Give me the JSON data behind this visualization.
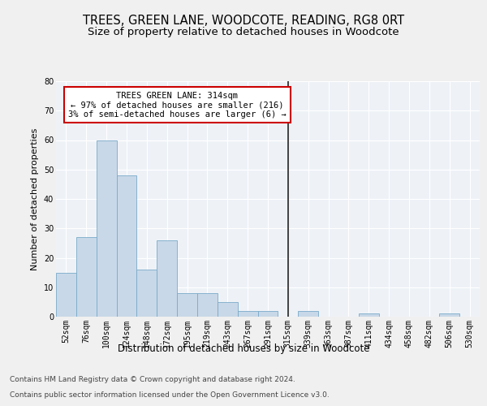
{
  "title": "TREES, GREEN LANE, WOODCOTE, READING, RG8 0RT",
  "subtitle": "Size of property relative to detached houses in Woodcote",
  "xlabel": "Distribution of detached houses by size in Woodcote",
  "ylabel": "Number of detached properties",
  "categories": [
    "52sqm",
    "76sqm",
    "100sqm",
    "124sqm",
    "148sqm",
    "172sqm",
    "195sqm",
    "219sqm",
    "243sqm",
    "267sqm",
    "291sqm",
    "315sqm",
    "339sqm",
    "363sqm",
    "387sqm",
    "411sqm",
    "434sqm",
    "458sqm",
    "482sqm",
    "506sqm",
    "530sqm"
  ],
  "values": [
    15,
    27,
    60,
    48,
    16,
    26,
    8,
    8,
    5,
    2,
    2,
    0,
    2,
    0,
    0,
    1,
    0,
    0,
    0,
    1,
    0
  ],
  "bar_color": "#c8d8e8",
  "bar_edge_color": "#7aaac8",
  "annotation_text": "TREES GREEN LANE: 314sqm\n← 97% of detached houses are smaller (216)\n3% of semi-detached houses are larger (6) →",
  "annotation_box_color": "#ffffff",
  "annotation_box_edge": "#cc0000",
  "ylim": [
    0,
    80
  ],
  "yticks": [
    0,
    10,
    20,
    30,
    40,
    50,
    60,
    70,
    80
  ],
  "background_color": "#eef2f7",
  "grid_color": "#ffffff",
  "footer_line1": "Contains HM Land Registry data © Crown copyright and database right 2024.",
  "footer_line2": "Contains public sector information licensed under the Open Government Licence v3.0.",
  "title_fontsize": 10.5,
  "subtitle_fontsize": 9.5,
  "axis_label_fontsize": 8.5,
  "tick_fontsize": 7,
  "annotation_fontsize": 7.5,
  "footer_fontsize": 6.5,
  "ylabel_fontsize": 8
}
